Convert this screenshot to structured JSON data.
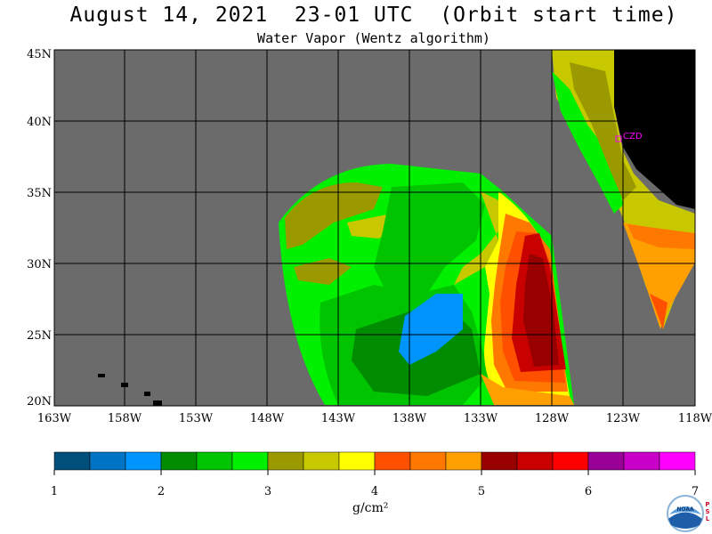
{
  "header": {
    "title": "August 14, 2021  23-01 UTC  (Orbit start time)",
    "subtitle": "Water Vapor (Wentz algorithm)"
  },
  "map": {
    "lat_labels": [
      "45N",
      "40N",
      "35N",
      "30N",
      "25N",
      "20N"
    ],
    "lon_labels": [
      "163W",
      "158W",
      "153W",
      "148W",
      "143W",
      "138W",
      "133W",
      "128W",
      "123W",
      "118W"
    ],
    "station_label": "CZD",
    "colors": {
      "nodata": "#6b6b6b",
      "land": "#000000",
      "grid": "#000000",
      "station": "#ff00ff"
    }
  },
  "colorbar": {
    "colors": [
      "#004e7a",
      "#0074c4",
      "#0094ff",
      "#008c00",
      "#00c400",
      "#00f000",
      "#9a9a00",
      "#c8c800",
      "#ffff00",
      "#ff5000",
      "#ff7800",
      "#ffa000",
      "#980000",
      "#c80000",
      "#ff0000",
      "#980098",
      "#c800c8",
      "#ff00ff"
    ],
    "tick_labels": [
      "1",
      "2",
      "3",
      "4",
      "5",
      "6",
      "7"
    ],
    "units": "g/cm²"
  },
  "logo": {
    "text": "NOAA",
    "side_text": "PSL"
  }
}
